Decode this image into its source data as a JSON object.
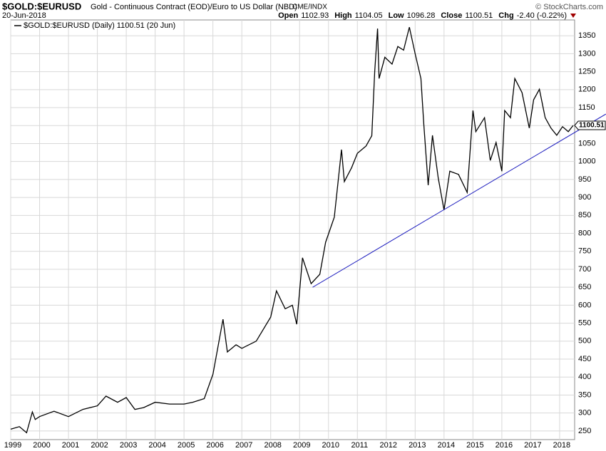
{
  "header": {
    "symbol": "$GOLD:$EURUSD",
    "description": "Gold - Continuous Contract (EOD)/Euro to US Dollar (NBD)",
    "exchange": "CME/INDX",
    "date": "20-Jun-2018",
    "copyright": "© StockCharts.com",
    "quote": [
      {
        "label": "Open",
        "value": "1102.93"
      },
      {
        "label": "High",
        "value": "1104.05"
      },
      {
        "label": "Low",
        "value": "1096.28"
      },
      {
        "label": "Close",
        "value": "1100.51"
      },
      {
        "label": "Chg",
        "value": "-2.40 (-0.22%)"
      }
    ]
  },
  "chart_data": {
    "type": "line",
    "legend": "$GOLD:$EURUSD (Daily) 1100.51 (20 Jun)",
    "grid": true,
    "y_axis_side": "right",
    "xlim": [
      1999,
      2018.52
    ],
    "xticks": [
      1999,
      2000,
      2001,
      2002,
      2003,
      2004,
      2005,
      2006,
      2007,
      2008,
      2009,
      2010,
      2011,
      2012,
      2013,
      2014,
      2015,
      2016,
      2017,
      2018
    ],
    "ylim": [
      226,
      1394
    ],
    "yticks": [
      250,
      300,
      350,
      400,
      450,
      500,
      550,
      600,
      650,
      700,
      750,
      800,
      850,
      900,
      950,
      1000,
      1050,
      1100,
      1150,
      1200,
      1250,
      1300,
      1350
    ],
    "series": [
      {
        "name": "$GOLD:$EURUSD",
        "color": "#000000",
        "x": [
          1999.0,
          1999.3,
          1999.55,
          1999.75,
          1999.85,
          2000.0,
          2000.5,
          2001.0,
          2001.5,
          2002.0,
          2002.3,
          2002.7,
          2003.0,
          2003.3,
          2003.6,
          2004.0,
          2004.5,
          2005.0,
          2005.3,
          2005.7,
          2006.0,
          2006.35,
          2006.5,
          2006.8,
          2007.0,
          2007.5,
          2008.0,
          2008.2,
          2008.5,
          2008.75,
          2008.9,
          2009.1,
          2009.4,
          2009.7,
          2009.9,
          2010.2,
          2010.45,
          2010.55,
          2010.8,
          2011.0,
          2011.3,
          2011.5,
          2011.6,
          2011.7,
          2011.75,
          2011.95,
          2012.2,
          2012.4,
          2012.6,
          2012.8,
          2013.0,
          2013.2,
          2013.3,
          2013.45,
          2013.6,
          2013.8,
          2014.0,
          2014.2,
          2014.5,
          2014.8,
          2015.0,
          2015.1,
          2015.4,
          2015.6,
          2015.8,
          2016.0,
          2016.1,
          2016.3,
          2016.45,
          2016.7,
          2016.95,
          2017.1,
          2017.3,
          2017.5,
          2017.7,
          2017.9,
          2018.1,
          2018.3,
          2018.47
        ],
        "values": [
          255,
          262,
          245,
          303,
          282,
          290,
          305,
          290,
          310,
          320,
          347,
          330,
          343,
          310,
          315,
          330,
          325,
          325,
          330,
          340,
          408,
          561,
          470,
          490,
          480,
          500,
          567,
          640,
          590,
          600,
          547,
          732,
          660,
          686,
          775,
          845,
          1033,
          944,
          983,
          1023,
          1043,
          1072,
          1251,
          1370,
          1231,
          1290,
          1271,
          1320,
          1310,
          1374,
          1300,
          1231,
          1102,
          934,
          1073,
          954,
          865,
          973,
          964,
          914,
          1142,
          1083,
          1122,
          1003,
          1053,
          973,
          1142,
          1122,
          1231,
          1192,
          1093,
          1172,
          1201,
          1122,
          1093,
          1073,
          1097,
          1083,
          1100.51
        ]
      }
    ],
    "trendline": {
      "color": "#1f1fbf",
      "x": [
        2009.45,
        2019.6
      ],
      "values": [
        650,
        1132
      ]
    }
  }
}
